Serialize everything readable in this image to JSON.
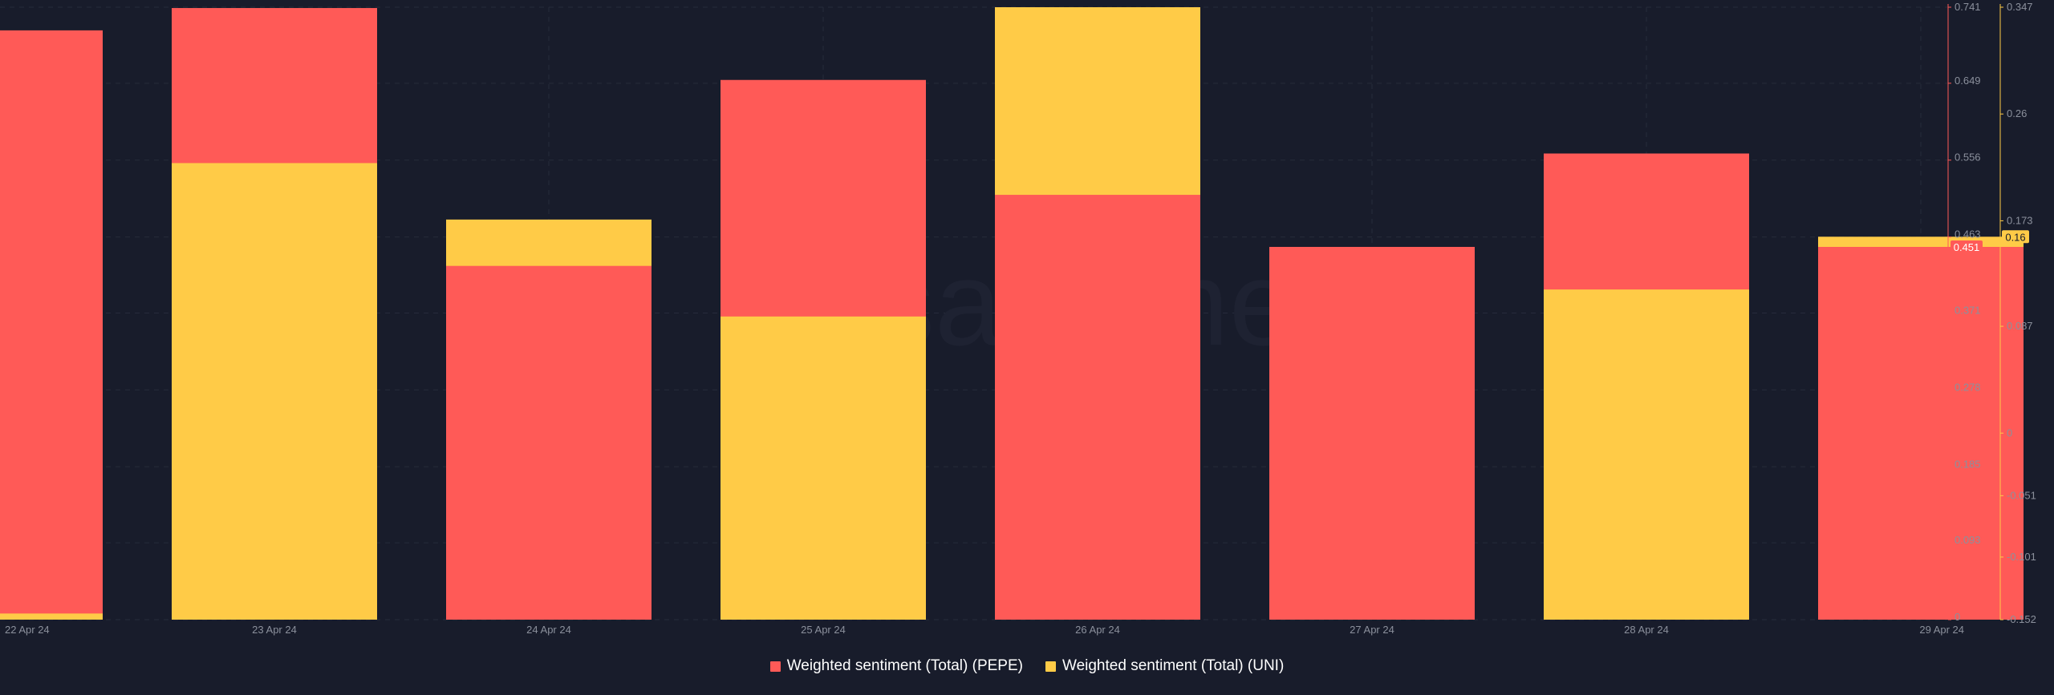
{
  "chart_data": {
    "type": "bar",
    "watermark": "santiment",
    "categories": [
      "22 Apr 24",
      "23 Apr 24",
      "24 Apr 24",
      "25 Apr 24",
      "26 Apr 24",
      "27 Apr 24",
      "28 Apr 24",
      "29 Apr 24"
    ],
    "series": [
      {
        "name": "Weighted sentiment (Total) (PEPE)",
        "color": "#ff5a57",
        "axis": "left",
        "values": [
          0.713,
          0.74,
          0.428,
          0.653,
          0.514,
          0.451,
          0.564,
          0.451
        ]
      },
      {
        "name": "Weighted sentiment (Total) (UNI)",
        "color": "#ffcb47",
        "axis": "right",
        "values": [
          -0.147,
          0.22,
          0.174,
          0.095,
          0.347,
          null,
          0.117,
          0.16
        ]
      }
    ],
    "left_axis": {
      "ticks": [
        "0",
        "0.093",
        "0.185",
        "0.278",
        "0.371",
        "0.463",
        "0.556",
        "0.649",
        "0.741"
      ],
      "ylim": [
        0,
        0.741
      ],
      "current": "0.451"
    },
    "right_axis": {
      "ticks": [
        "-0.152",
        "-0.101",
        "-0.051",
        "0",
        "0.087",
        "0.173",
        "0.26",
        "0.347"
      ],
      "ylim": [
        -0.152,
        0.347
      ],
      "current": "0.16"
    },
    "xlabel": "",
    "ylabel": "",
    "grid": true,
    "legend_position": "bottom-center"
  },
  "legend": [
    {
      "label": "Weighted sentiment (Total) (PEPE)",
      "color": "#ff5a57"
    },
    {
      "label": "Weighted sentiment (Total) (UNI)",
      "color": "#ffcb47"
    }
  ]
}
